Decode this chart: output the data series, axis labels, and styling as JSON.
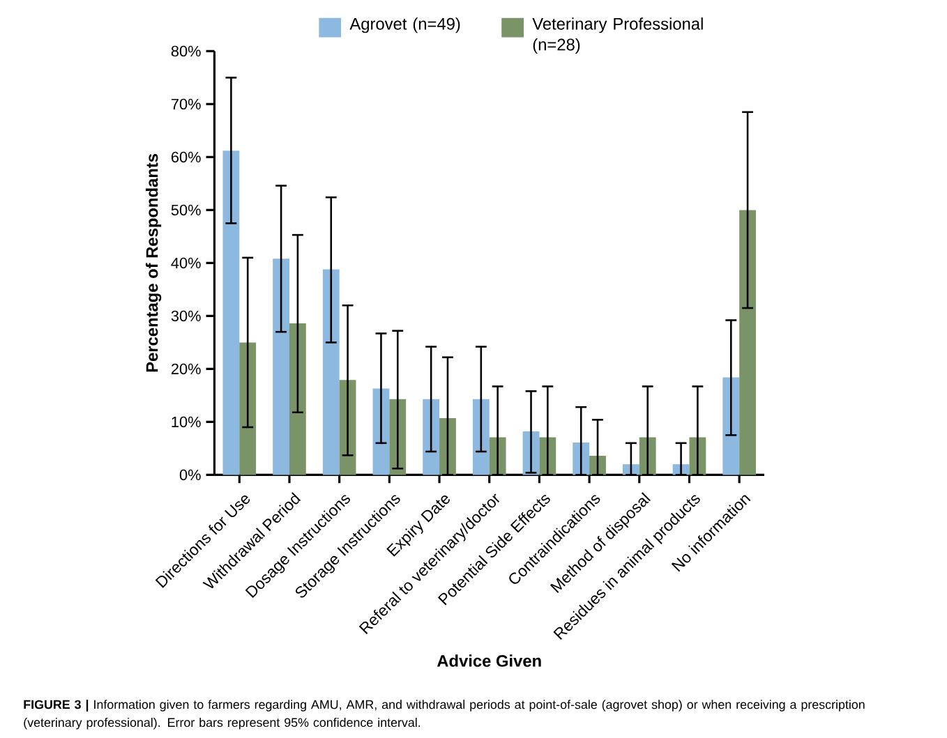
{
  "chart_data": {
    "type": "bar",
    "xlabel": "Advice Given",
    "ylabel": "Percentage of Respondants",
    "categories": [
      "Directions for Use",
      "Withdrawal Period",
      "Dosage Instructions",
      "Storage Instructions",
      "Expiry Date",
      "Referal to veterinary/doctor",
      "Potential Side Effects",
      "Contraindications",
      "Method of disposal",
      "Residues in animal products",
      "No information"
    ],
    "series": [
      {
        "name": "Agrovet (n=49)",
        "color": "#8db8e0",
        "values": [
          61.2,
          40.8,
          38.8,
          16.3,
          14.3,
          14.3,
          8.2,
          6.1,
          2.0,
          2.0,
          18.4
        ],
        "errors": [
          [
            47.5,
            75
          ],
          [
            27,
            54.6
          ],
          [
            25,
            52.4
          ],
          [
            6,
            26.7
          ],
          [
            4.4,
            24.2
          ],
          [
            4.4,
            24.2
          ],
          [
            0.4,
            15.8
          ],
          [
            0,
            12.8
          ],
          [
            0,
            6
          ],
          [
            0,
            6
          ],
          [
            7.5,
            29.2
          ]
        ]
      },
      {
        "name": "Veterinary Professional (n=28)",
        "color": "#7a9467",
        "values": [
          25.0,
          28.6,
          17.9,
          14.3,
          10.7,
          7.1,
          7.1,
          3.6,
          7.1,
          7.1,
          50.0
        ],
        "errors": [
          [
            9,
            41
          ],
          [
            11.8,
            45.3
          ],
          [
            3.7,
            32
          ],
          [
            1.2,
            27.2
          ],
          [
            0,
            22.2
          ],
          [
            0,
            16.7
          ],
          [
            0,
            16.7
          ],
          [
            0,
            10.4
          ],
          [
            0,
            16.7
          ],
          [
            0,
            16.7
          ],
          [
            31.5,
            68.5
          ]
        ]
      }
    ],
    "ylim": [
      0,
      80
    ],
    "yticks": [
      {
        "value": 0,
        "label": "0%"
      },
      {
        "value": 10,
        "label": "10%"
      },
      {
        "value": 20,
        "label": "20%"
      },
      {
        "value": 30,
        "label": "30%"
      },
      {
        "value": 40,
        "label": "40%"
      },
      {
        "value": 50,
        "label": "50%"
      },
      {
        "value": 60,
        "label": "60%"
      },
      {
        "value": 70,
        "label": "70%"
      },
      {
        "value": 80,
        "label": "80%"
      }
    ],
    "legend": "top",
    "annotations": [
      "**FIGURE 3 |** Information given to farmers regarding AMU, AMR, and withdrawal periods at point-of-sale (agrovet shop) or when receiving a prescription (veterinary professional). Error bars represent 95% confidence interval."
    ]
  }
}
